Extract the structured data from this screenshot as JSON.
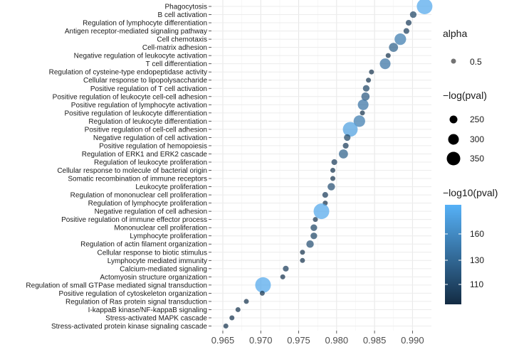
{
  "chart_data": {
    "type": "scatter",
    "x_ticks": [
      "0.965",
      "0.970",
      "0.975",
      "0.980",
      "0.985",
      "0.990"
    ],
    "xlim": [
      0.9635,
      0.9925
    ],
    "grid": true,
    "legend_position": "right",
    "legend": {
      "alpha": {
        "title": "alpha",
        "labels": [
          "0.5"
        ]
      },
      "size": {
        "title": "−log(pval)",
        "labels": [
          "250",
          "300",
          "350"
        ]
      },
      "color": {
        "title": "−log10(pval)",
        "labels": [
          "160",
          "130",
          "110"
        ],
        "low": "#132b43",
        "high": "#56b1f7"
      }
    },
    "points": [
      {
        "term": "Phagocytosis",
        "x": 0.9916,
        "neglog10": 165
      },
      {
        "term": "B cell activation",
        "x": 0.9901,
        "neglog10": 110
      },
      {
        "term": "Regulation of lymphocyte differentiation",
        "x": 0.9895,
        "neglog10": 105
      },
      {
        "term": "Antigen receptor-mediated signaling pathway",
        "x": 0.9892,
        "neglog10": 105
      },
      {
        "term": "Cell chemotaxis",
        "x": 0.9884,
        "neglog10": 140
      },
      {
        "term": "Cell-matrix adhesion",
        "x": 0.9875,
        "neglog10": 125
      },
      {
        "term": "Negative regulation of leukocyte activation",
        "x": 0.9868,
        "neglog10": 100
      },
      {
        "term": "T cell differentiation",
        "x": 0.9864,
        "neglog10": 135
      },
      {
        "term": "Regulation of cysteine-type endopeptidase activity",
        "x": 0.9846,
        "neglog10": 100
      },
      {
        "term": "Cellular response to lipopolysaccharide",
        "x": 0.9842,
        "neglog10": 100
      },
      {
        "term": "Positive regulation of T cell activation",
        "x": 0.9839,
        "neglog10": 110
      },
      {
        "term": "Positive regulation of leukocyte cell-cell adhesion",
        "x": 0.9838,
        "neglog10": 120
      },
      {
        "term": "Positive regulation of lymphocyte activation",
        "x": 0.9835,
        "neglog10": 135
      },
      {
        "term": "Positive regulation of leukocyte differentiation",
        "x": 0.9834,
        "neglog10": 100
      },
      {
        "term": "Regulation of leukocyte differentiation",
        "x": 0.983,
        "neglog10": 140
      },
      {
        "term": "Positive regulation of cell-cell adhesion",
        "x": 0.9818,
        "neglog10": 160
      },
      {
        "term": "Negative regulation of cell activation",
        "x": 0.9814,
        "neglog10": 110
      },
      {
        "term": "Positive regulation of hemopoiesis",
        "x": 0.9812,
        "neglog10": 105
      },
      {
        "term": "Regulation of ERK1 and ERK2 cascade",
        "x": 0.9809,
        "neglog10": 125
      },
      {
        "term": "Regulation of leukocyte proliferation",
        "x": 0.9797,
        "neglog10": 105
      },
      {
        "term": "Cellular response to molecule of bacterial origin",
        "x": 0.9795,
        "neglog10": 100
      },
      {
        "term": "Somatic recombination of immune receptors",
        "x": 0.9795,
        "neglog10": 100
      },
      {
        "term": "Leukocyte proliferation",
        "x": 0.9793,
        "neglog10": 115
      },
      {
        "term": "Regulation of mononuclear cell proliferation",
        "x": 0.9785,
        "neglog10": 105
      },
      {
        "term": "Regulation of lymphocyte proliferation",
        "x": 0.9785,
        "neglog10": 100
      },
      {
        "term": "Negative regulation of cell adhesion",
        "x": 0.978,
        "neglog10": 165
      },
      {
        "term": "Positive regulation of immune effector process",
        "x": 0.9772,
        "neglog10": 100
      },
      {
        "term": "Mononuclear cell proliferation",
        "x": 0.977,
        "neglog10": 110
      },
      {
        "term": "Lymphocyte proliferation",
        "x": 0.977,
        "neglog10": 110
      },
      {
        "term": "Regulation of actin filament organization",
        "x": 0.9765,
        "neglog10": 115
      },
      {
        "term": "Cellular response to biotic stimulus",
        "x": 0.9755,
        "neglog10": 100
      },
      {
        "term": "Lymphocyte mediated immunity",
        "x": 0.9755,
        "neglog10": 100
      },
      {
        "term": "Calcium-mediated signaling",
        "x": 0.9733,
        "neglog10": 105
      },
      {
        "term": "Actomyosin structure organization",
        "x": 0.9729,
        "neglog10": 100
      },
      {
        "term": "Regulation of small GTPase mediated signal transduction",
        "x": 0.9703,
        "neglog10": 165
      },
      {
        "term": "Positive regulation of cytoskeleton organization",
        "x": 0.9702,
        "neglog10": 100
      },
      {
        "term": "Regulation of Ras protein signal transduction",
        "x": 0.9681,
        "neglog10": 100
      },
      {
        "term": "I-kappaB kinase/NF-kappaB signaling",
        "x": 0.967,
        "neglog10": 100
      },
      {
        "term": "Stress-activated MAPK cascade",
        "x": 0.9662,
        "neglog10": 100
      },
      {
        "term": "Stress-activated protein kinase signaling cascade",
        "x": 0.9654,
        "neglog10": 100
      }
    ]
  }
}
